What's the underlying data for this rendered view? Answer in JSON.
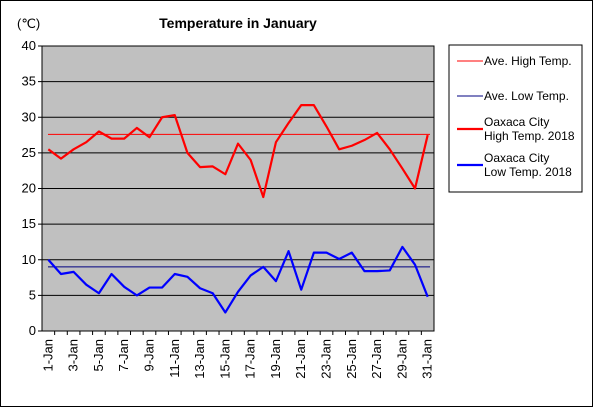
{
  "chart_data": {
    "type": "line",
    "title": "Temperature in January",
    "unit_label": "(℃)",
    "ylim": [
      0,
      40
    ],
    "yticks": [
      0,
      5,
      10,
      15,
      20,
      25,
      30,
      35,
      40
    ],
    "x": [
      "1-Jan",
      "2-Jan",
      "3-Jan",
      "4-Jan",
      "5-Jan",
      "6-Jan",
      "7-Jan",
      "8-Jan",
      "9-Jan",
      "10-Jan",
      "11-Jan",
      "12-Jan",
      "13-Jan",
      "14-Jan",
      "15-Jan",
      "16-Jan",
      "17-Jan",
      "18-Jan",
      "19-Jan",
      "20-Jan",
      "21-Jan",
      "22-Jan",
      "23-Jan",
      "24-Jan",
      "25-Jan",
      "26-Jan",
      "27-Jan",
      "28-Jan",
      "29-Jan",
      "30-Jan",
      "31-Jan"
    ],
    "xticks": [
      "1-Jan",
      "3-Jan",
      "5-Jan",
      "7-Jan",
      "9-Jan",
      "11-Jan",
      "13-Jan",
      "15-Jan",
      "17-Jan",
      "19-Jan",
      "21-Jan",
      "23-Jan",
      "25-Jan",
      "27-Jan",
      "29-Jan",
      "31-Jan"
    ],
    "grid": true,
    "legend_position": "right",
    "series": [
      {
        "name": "Ave. High Temp.",
        "color": "#ff0000",
        "style": "thin",
        "values": [
          27.6,
          27.6,
          27.6,
          27.6,
          27.6,
          27.6,
          27.6,
          27.6,
          27.6,
          27.6,
          27.6,
          27.6,
          27.6,
          27.6,
          27.6,
          27.6,
          27.6,
          27.6,
          27.6,
          27.6,
          27.6,
          27.6,
          27.6,
          27.6,
          27.6,
          27.6,
          27.6,
          27.6,
          27.6,
          27.6,
          27.6
        ]
      },
      {
        "name": "Ave. Low Temp.",
        "color": "#000080",
        "style": "thin",
        "values": [
          9.0,
          9.0,
          9.0,
          9.0,
          9.0,
          9.0,
          9.0,
          9.0,
          9.0,
          9.0,
          9.0,
          9.0,
          9.0,
          9.0,
          9.0,
          9.0,
          9.0,
          9.0,
          9.0,
          9.0,
          9.0,
          9.0,
          9.0,
          9.0,
          9.0,
          9.0,
          9.0,
          9.0,
          9.0,
          9.0,
          9.0
        ]
      },
      {
        "name": "Oaxaca City High Temp. 2018",
        "name_lines": [
          "Oaxaca City",
          "High Temp. 2018"
        ],
        "color": "#ff0000",
        "style": "thick",
        "values": [
          25.5,
          24.2,
          25.5,
          26.5,
          28.0,
          27.0,
          27.0,
          28.5,
          27.2,
          30.0,
          30.3,
          25.0,
          23.0,
          23.1,
          22.0,
          26.3,
          24.0,
          18.8,
          26.5,
          29.2,
          31.7,
          31.7,
          28.7,
          25.5,
          26.0,
          26.8,
          27.8,
          25.5,
          22.8,
          20.0,
          27.5
        ]
      },
      {
        "name": "Oaxaca City Low Temp. 2018",
        "name_lines": [
          "Oaxaca City",
          "Low Temp. 2018"
        ],
        "color": "#0000ff",
        "style": "thick",
        "values": [
          10.0,
          8.0,
          8.3,
          6.5,
          5.3,
          8.0,
          6.2,
          5.0,
          6.1,
          6.1,
          8.0,
          7.6,
          6.0,
          5.3,
          2.6,
          5.5,
          7.8,
          9.0,
          7.0,
          11.2,
          5.8,
          11.0,
          11.0,
          10.1,
          11.0,
          8.4,
          8.4,
          8.5,
          11.8,
          9.3,
          4.8
        ]
      }
    ]
  }
}
